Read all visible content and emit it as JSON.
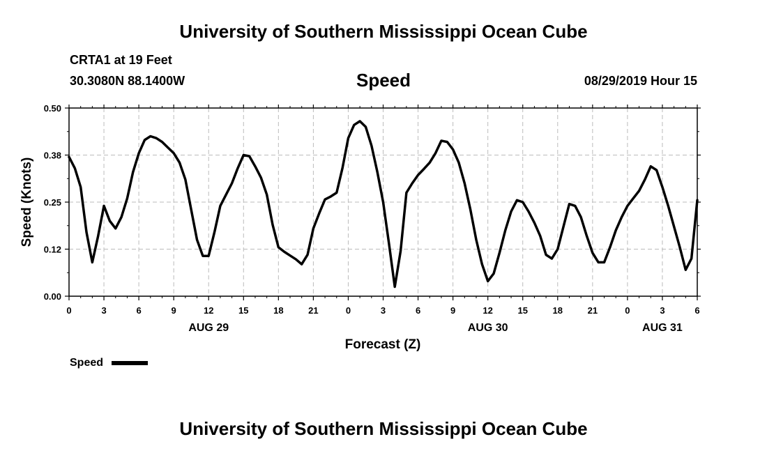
{
  "header": {
    "title": "University of Southern Mississippi Ocean Cube",
    "station": "CRTA1 at 19 Feet",
    "coordinates": "30.3080N 88.1400W",
    "parameter": "Speed",
    "datetime": "08/29/2019 Hour 15"
  },
  "footer": {
    "title": "University of Southern Mississippi Ocean Cube"
  },
  "colors": {
    "line": "#000000",
    "grid": "#bbbbbb",
    "background": "#ffffff"
  },
  "chart_data": {
    "type": "line",
    "xlabel": "Forecast (Z)",
    "ylabel": "Speed (Knots)",
    "xlim": [
      0,
      54
    ],
    "ylim": [
      0.0,
      0.5
    ],
    "yticks": [
      "0.00",
      "0.12",
      "0.25",
      "0.38",
      "0.50"
    ],
    "xtick_labels": [
      "0",
      "3",
      "6",
      "9",
      "12",
      "15",
      "18",
      "21",
      "0",
      "3",
      "6",
      "9",
      "12",
      "15",
      "18",
      "21",
      "0",
      "3",
      "6"
    ],
    "day_labels": [
      {
        "label": "AUG 29",
        "hour": 12
      },
      {
        "label": "AUG 30",
        "hour": 36
      },
      {
        "label": "AUG 31",
        "hour": 51
      }
    ],
    "grid": true,
    "legend": {
      "label": "Speed",
      "placement": "bottom-left"
    },
    "series": [
      {
        "name": "Speed",
        "x": [
          0,
          0.5,
          1,
          1.5,
          2,
          2.5,
          3,
          3.5,
          4,
          4.5,
          5,
          5.5,
          6,
          6.5,
          7,
          7.5,
          8,
          8.5,
          9,
          9.5,
          10,
          10.5,
          11,
          11.5,
          12,
          12.5,
          13,
          13.5,
          14,
          14.5,
          15,
          15.5,
          16,
          16.5,
          17,
          17.5,
          18,
          18.5,
          19,
          19.5,
          20,
          20.5,
          21,
          21.5,
          22,
          22.5,
          23,
          23.5,
          24,
          24.5,
          25,
          25.5,
          26,
          26.5,
          27,
          27.5,
          28,
          28.5,
          29,
          29.5,
          30,
          30.5,
          31,
          31.5,
          32,
          32.5,
          33,
          33.5,
          34,
          34.5,
          35,
          35.5,
          36,
          36.5,
          37,
          37.5,
          38,
          38.5,
          39,
          39.5,
          40,
          40.5,
          41,
          41.5,
          42,
          42.5,
          43,
          43.5,
          44,
          44.5,
          45,
          45.5,
          46,
          46.5,
          47,
          47.5,
          48,
          48.5,
          49,
          49.5,
          50,
          50.5,
          51,
          51.5,
          52,
          52.5,
          53,
          53.5,
          54
        ],
        "values": [
          0.37,
          0.34,
          0.29,
          0.17,
          0.09,
          0.16,
          0.24,
          0.2,
          0.18,
          0.21,
          0.26,
          0.33,
          0.38,
          0.415,
          0.425,
          0.42,
          0.41,
          0.395,
          0.38,
          0.355,
          0.31,
          0.23,
          0.15,
          0.107,
          0.107,
          0.17,
          0.24,
          0.27,
          0.3,
          0.34,
          0.375,
          0.372,
          0.345,
          0.315,
          0.27,
          0.19,
          0.13,
          0.118,
          0.108,
          0.098,
          0.085,
          0.11,
          0.18,
          0.22,
          0.257,
          0.265,
          0.275,
          0.34,
          0.42,
          0.455,
          0.465,
          0.45,
          0.4,
          0.33,
          0.25,
          0.14,
          0.025,
          0.12,
          0.275,
          0.3,
          0.322,
          0.338,
          0.355,
          0.38,
          0.413,
          0.41,
          0.39,
          0.355,
          0.3,
          0.23,
          0.15,
          0.085,
          0.04,
          0.06,
          0.115,
          0.175,
          0.225,
          0.255,
          0.25,
          0.225,
          0.195,
          0.16,
          0.11,
          0.1,
          0.125,
          0.185,
          0.245,
          0.24,
          0.21,
          0.16,
          0.115,
          0.09,
          0.09,
          0.13,
          0.175,
          0.21,
          0.24,
          0.26,
          0.28,
          0.31,
          0.345,
          0.335,
          0.29,
          0.24,
          0.185,
          0.13,
          0.07,
          0.1,
          0.255
        ]
      }
    ]
  }
}
